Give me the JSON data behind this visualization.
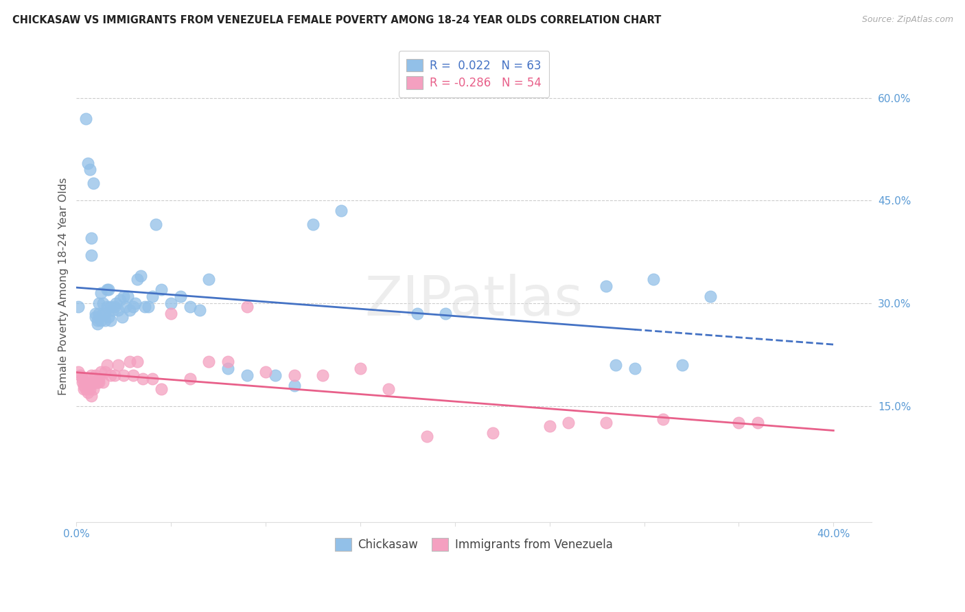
{
  "title": "CHICKASAW VS IMMIGRANTS FROM VENEZUELA FEMALE POVERTY AMONG 18-24 YEAR OLDS CORRELATION CHART",
  "source": "Source: ZipAtlas.com",
  "ylabel": "Female Poverty Among 18-24 Year Olds",
  "xlim": [
    0.0,
    0.42
  ],
  "ylim": [
    -0.02,
    0.67
  ],
  "ytick_vals": [
    0.0,
    0.15,
    0.3,
    0.45,
    0.6
  ],
  "ytick_labels": [
    "",
    "15.0%",
    "30.0%",
    "45.0%",
    "60.0%"
  ],
  "xtick_vals": [
    0.0,
    0.05,
    0.1,
    0.15,
    0.2,
    0.25,
    0.3,
    0.35,
    0.4
  ],
  "xtick_labels": [
    "0.0%",
    "",
    "",
    "",
    "",
    "",
    "",
    "",
    "40.0%"
  ],
  "color_blue": "#92C0E8",
  "color_pink": "#F4A0C0",
  "color_blue_line": "#4472C4",
  "color_pink_line": "#E8608A",
  "color_grid": "#CCCCCC",
  "watermark": "ZIPatlas",
  "blue_line_solid_end": 0.295,
  "blue_x": [
    0.001,
    0.005,
    0.006,
    0.007,
    0.008,
    0.008,
    0.009,
    0.01,
    0.01,
    0.011,
    0.011,
    0.012,
    0.012,
    0.013,
    0.013,
    0.014,
    0.014,
    0.015,
    0.015,
    0.016,
    0.016,
    0.017,
    0.017,
    0.018,
    0.018,
    0.019,
    0.02,
    0.021,
    0.022,
    0.023,
    0.024,
    0.025,
    0.026,
    0.027,
    0.028,
    0.03,
    0.031,
    0.032,
    0.034,
    0.036,
    0.038,
    0.04,
    0.042,
    0.045,
    0.05,
    0.055,
    0.06,
    0.065,
    0.07,
    0.08,
    0.09,
    0.105,
    0.115,
    0.125,
    0.14,
    0.18,
    0.195,
    0.28,
    0.285,
    0.295,
    0.305,
    0.32,
    0.335
  ],
  "blue_y": [
    0.295,
    0.57,
    0.505,
    0.495,
    0.395,
    0.37,
    0.475,
    0.285,
    0.28,
    0.275,
    0.27,
    0.285,
    0.3,
    0.275,
    0.315,
    0.285,
    0.3,
    0.275,
    0.285,
    0.295,
    0.32,
    0.28,
    0.32,
    0.295,
    0.275,
    0.29,
    0.295,
    0.3,
    0.29,
    0.305,
    0.28,
    0.31,
    0.295,
    0.31,
    0.29,
    0.295,
    0.3,
    0.335,
    0.34,
    0.295,
    0.295,
    0.31,
    0.415,
    0.32,
    0.3,
    0.31,
    0.295,
    0.29,
    0.335,
    0.205,
    0.195,
    0.195,
    0.18,
    0.415,
    0.435,
    0.285,
    0.285,
    0.325,
    0.21,
    0.205,
    0.335,
    0.21,
    0.31
  ],
  "pink_x": [
    0.001,
    0.002,
    0.003,
    0.003,
    0.004,
    0.004,
    0.005,
    0.005,
    0.006,
    0.006,
    0.007,
    0.007,
    0.008,
    0.008,
    0.009,
    0.009,
    0.01,
    0.01,
    0.011,
    0.011,
    0.012,
    0.012,
    0.013,
    0.014,
    0.015,
    0.016,
    0.018,
    0.02,
    0.022,
    0.025,
    0.028,
    0.03,
    0.032,
    0.035,
    0.04,
    0.045,
    0.05,
    0.06,
    0.07,
    0.08,
    0.09,
    0.1,
    0.115,
    0.13,
    0.15,
    0.165,
    0.185,
    0.22,
    0.25,
    0.26,
    0.28,
    0.31,
    0.35,
    0.36
  ],
  "pink_y": [
    0.2,
    0.195,
    0.185,
    0.19,
    0.18,
    0.175,
    0.175,
    0.185,
    0.17,
    0.19,
    0.175,
    0.18,
    0.165,
    0.195,
    0.185,
    0.175,
    0.195,
    0.185,
    0.185,
    0.185,
    0.19,
    0.185,
    0.2,
    0.185,
    0.2,
    0.21,
    0.195,
    0.195,
    0.21,
    0.195,
    0.215,
    0.195,
    0.215,
    0.19,
    0.19,
    0.175,
    0.285,
    0.19,
    0.215,
    0.215,
    0.295,
    0.2,
    0.195,
    0.195,
    0.205,
    0.175,
    0.105,
    0.11,
    0.12,
    0.125,
    0.125,
    0.13,
    0.125,
    0.125
  ]
}
